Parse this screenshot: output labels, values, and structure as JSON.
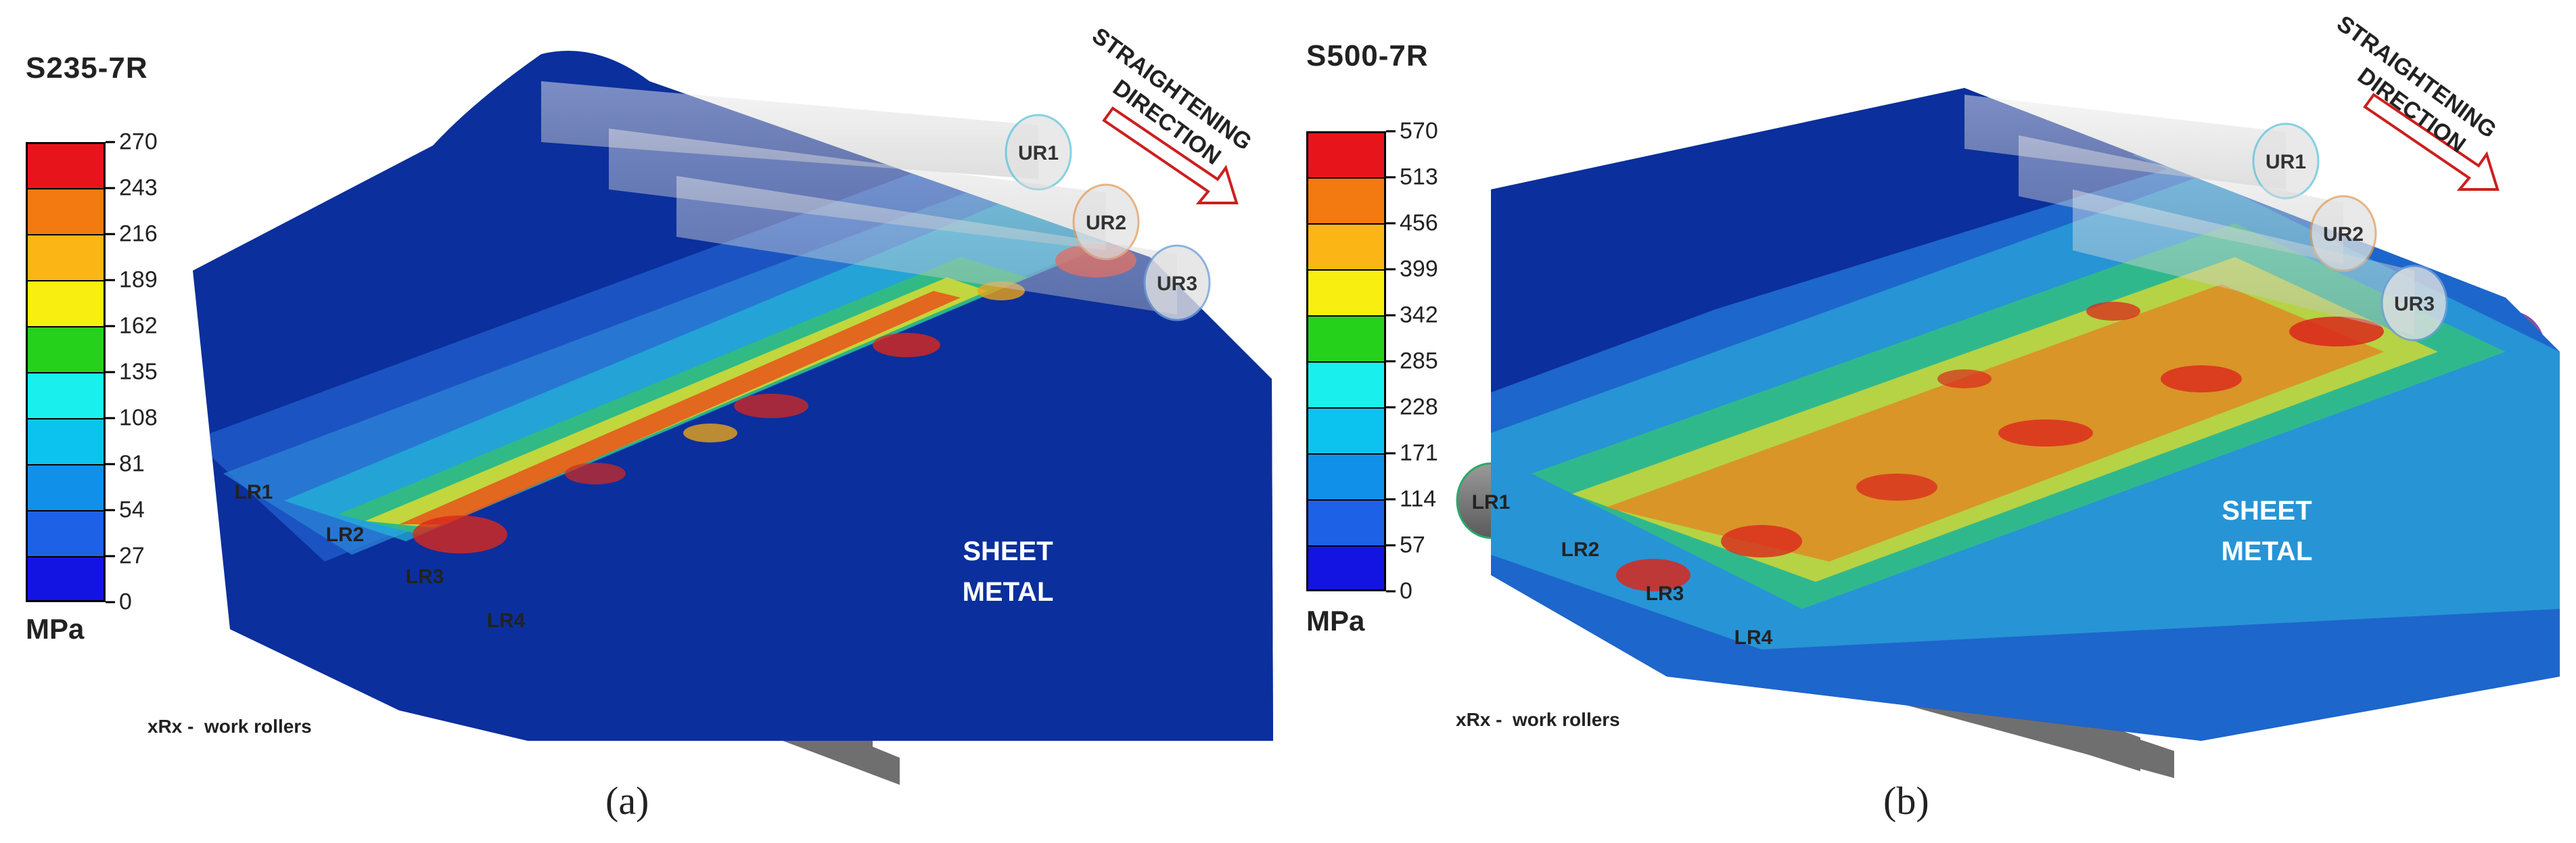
{
  "panels": [
    {
      "material": "S235-7R",
      "unit": "MPa",
      "scale_ticks": [
        "270",
        "243",
        "216",
        "189",
        "162",
        "135",
        "108",
        "81",
        "54",
        "27",
        "0"
      ],
      "sheet_label": [
        "SHEET",
        "METAL"
      ],
      "direction_label": [
        "STRAIGHTENING",
        "DIRECTION"
      ],
      "upper_rollers": [
        "UR1",
        "UR2",
        "UR3"
      ],
      "lower_rollers": [
        "LR1",
        "LR2",
        "LR3",
        "LR4"
      ],
      "note": "xRx -  work rollers",
      "caption": "(a)"
    },
    {
      "material": "S500-7R",
      "unit": "MPa",
      "scale_ticks": [
        "570",
        "513",
        "456",
        "399",
        "342",
        "285",
        "228",
        "171",
        "114",
        "57",
        "0"
      ],
      "sheet_label": [
        "SHEET",
        "METAL"
      ],
      "direction_label": [
        "STRAIGHTENING",
        "DIRECTION"
      ],
      "upper_rollers": [
        "UR1",
        "UR2",
        "UR3"
      ],
      "lower_rollers": [
        "LR1",
        "LR2",
        "LR3",
        "LR4"
      ],
      "note": "xRx -  work rollers",
      "caption": "(b)"
    }
  ],
  "colors": {
    "scale_bands": [
      "#e8141c",
      "#f27a10",
      "#fbb616",
      "#f8ef10",
      "#26d11c",
      "#19f0ee",
      "#0cc3ef",
      "#1190e9",
      "#1d62e6",
      "#1414e2"
    ],
    "sheet_base": "#0b2f9c",
    "roller_fill": "#7a7a7a",
    "roller_glass": "#d0d0d0",
    "arrow": "#cc1f1f"
  }
}
